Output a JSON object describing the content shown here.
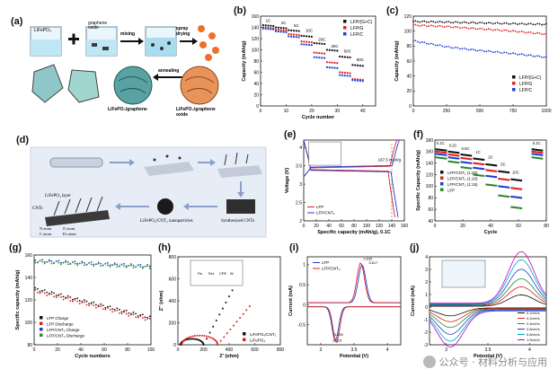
{
  "panels": {
    "a": {
      "label": "(a)",
      "reagent_left": "LiFePO₄",
      "reagent_right": "graphene oxide",
      "step_mixing": "mixing",
      "step_spray": "spray drying",
      "step_anneal": "annealing",
      "product_left": "LiFePO₄/graphene",
      "product_right": "LiFePO₄/graphene oxide"
    },
    "b": {
      "label": "(b)"
    },
    "c": {
      "label": "(c)"
    },
    "d": {
      "label": "(d)",
      "cnts": "CNTs",
      "lfp_layer": "LiFePO₄ layer",
      "nanoparticles": "LiFePO₄/CNT₂ nanoparticles",
      "synthesized": "Synthesized CNTs",
      "legend_n": "N atom",
      "legend_o": "O atom",
      "legend_c": "C atom",
      "legend_fe": "Fe atom"
    },
    "e": {
      "label": "(e)"
    },
    "f": {
      "label": "(f)"
    },
    "g": {
      "label": "(g)"
    },
    "h": {
      "label": "(h)"
    },
    "i": {
      "label": "(i)"
    },
    "j": {
      "label": "(j)"
    }
  },
  "watermark": "公众号 · 材料分析与应用",
  "chart_data": [
    {
      "id": "b",
      "type": "scatter",
      "xlabel": "Cycle number",
      "ylabel": "Capacity (mAh/g)",
      "xlim": [
        0,
        45
      ],
      "ylim": [
        0,
        160
      ],
      "xticks": [
        0,
        10,
        20,
        30,
        40
      ],
      "yticks": [
        0,
        20,
        40,
        60,
        80,
        100,
        120,
        140,
        160
      ],
      "rate_labels": [
        {
          "text": "1C",
          "x": 3,
          "y": 150
        },
        {
          "text": "2C",
          "x": 9,
          "y": 146
        },
        {
          "text": "5C",
          "x": 14,
          "y": 141
        },
        {
          "text": "10C",
          "x": 19,
          "y": 132
        },
        {
          "text": "20C",
          "x": 24,
          "y": 116
        },
        {
          "text": "30C",
          "x": 29,
          "y": 104
        },
        {
          "text": "50C",
          "x": 34,
          "y": 95
        },
        {
          "text": "60C",
          "x": 39,
          "y": 80
        }
      ],
      "series": [
        {
          "name": "LFP/(G+C)",
          "color": "#111111",
          "steps": [
            144,
            140,
            135,
            125,
            112,
            100,
            88,
            73
          ]
        },
        {
          "name": "LFP/G",
          "color": "#e02020",
          "steps": [
            140,
            136,
            128,
            115,
            95,
            78,
            60,
            48
          ]
        },
        {
          "name": "LFP/C",
          "color": "#1e3fd0",
          "steps": [
            138,
            133,
            124,
            110,
            90,
            72,
            58,
            49
          ]
        }
      ]
    },
    {
      "id": "c",
      "type": "line",
      "xlabel": "",
      "ylabel": "Capacity (mAh/g)",
      "xlim": [
        0,
        1000
      ],
      "ylim": [
        0,
        120
      ],
      "xticks": [
        0,
        250,
        500,
        750,
        1000
      ],
      "yticks": [
        0,
        20,
        40,
        60,
        80,
        100,
        120
      ],
      "series": [
        {
          "name": "LFP/(G+C)",
          "color": "#111111",
          "x": [
            0,
            250,
            500,
            750,
            1000
          ],
          "y": [
            113,
            112,
            111,
            110,
            109
          ]
        },
        {
          "name": "LFP/G",
          "color": "#e02020",
          "x": [
            0,
            250,
            500,
            750,
            1000
          ],
          "y": [
            108,
            106,
            103,
            100,
            96
          ]
        },
        {
          "name": "LFP/C",
          "color": "#1e3fd0",
          "x": [
            0,
            250,
            500,
            750,
            1000
          ],
          "y": [
            87,
            79,
            74,
            70,
            65
          ]
        }
      ]
    },
    {
      "id": "e",
      "type": "line",
      "xlabel": "Specific capacity (mAh/g), 0.1C",
      "ylabel": "Voltage (V)",
      "xlim": [
        0,
        160
      ],
      "ylim": [
        2.0,
        4.2
      ],
      "xticks": [
        0,
        20,
        40,
        60,
        80,
        100,
        120,
        140,
        160
      ],
      "yticks": [
        2.0,
        2.5,
        3.0,
        3.5,
        4.0
      ],
      "annotation": "167.5 mAh/g",
      "series": [
        {
          "name": "LFP",
          "color": "#e02020",
          "charge_end": 148,
          "discharge_end": 145
        },
        {
          "name": "LFP/CNT₂",
          "color": "#1e3fd0",
          "charge_end": 152,
          "discharge_end": 150
        }
      ]
    },
    {
      "id": "f",
      "type": "scatter",
      "xlabel": "Cycle",
      "ylabel": "Specific Capacity (mAh/g)",
      "xlim": [
        0,
        80
      ],
      "ylim": [
        40,
        180
      ],
      "xticks": [
        0,
        20,
        40,
        60,
        80
      ],
      "yticks": [
        40,
        60,
        80,
        100,
        120,
        140,
        160,
        180
      ],
      "rate_labels": [
        {
          "text": "0.1C",
          "x": 4,
          "y": 172
        },
        {
          "text": "0.2C",
          "x": 13,
          "y": 168
        },
        {
          "text": "0.5C",
          "x": 22,
          "y": 163
        },
        {
          "text": "1C",
          "x": 31,
          "y": 157
        },
        {
          "text": "2C",
          "x": 40,
          "y": 148
        },
        {
          "text": "5C",
          "x": 49,
          "y": 136
        },
        {
          "text": "10C",
          "x": 58,
          "y": 122
        },
        {
          "text": "0.1C",
          "x": 73,
          "y": 172
        }
      ],
      "series": [
        {
          "name": "LFP/CNT₂ (1:20)",
          "color": "#111111",
          "steps": [
            164,
            160,
            155,
            148,
            138,
            126,
            112,
            164
          ]
        },
        {
          "name": "LFP/CNT₂ (1:10)",
          "color": "#e02020",
          "steps": [
            160,
            155,
            149,
            140,
            128,
            113,
            97,
            160
          ]
        },
        {
          "name": "LFP/CNT₂ (1:15)",
          "color": "#1e3fd0",
          "steps": [
            156,
            150,
            142,
            132,
            118,
            100,
            82,
            156
          ]
        },
        {
          "name": "LFP",
          "color": "#2a8a2a",
          "steps": [
            150,
            143,
            133,
            120,
            103,
            84,
            64,
            150
          ]
        }
      ]
    },
    {
      "id": "g",
      "type": "scatter",
      "xlabel": "Cycle numbers",
      "ylabel": "Specific capacity (mAh/g)",
      "xlim": [
        0,
        100
      ],
      "ylim": [
        80,
        160
      ],
      "xticks": [
        0,
        20,
        40,
        60,
        80,
        100
      ],
      "yticks": [
        80,
        100,
        120,
        140,
        160
      ],
      "series": [
        {
          "name": "LFP Charge",
          "color": "#111111",
          "start": 130,
          "end": 104
        },
        {
          "name": "LFP Discharge",
          "color": "#e02020",
          "start": 128,
          "end": 102
        },
        {
          "name": "LFP/CNT₂ Charge",
          "color": "#1e3fd0",
          "start": 155,
          "end": 150
        },
        {
          "name": "LFP/CNT₂ Discharge",
          "color": "#2a8a2a",
          "start": 154,
          "end": 149
        }
      ]
    },
    {
      "id": "h",
      "type": "scatter",
      "xlabel": "Z′ (ohm)",
      "ylabel": "Z″ (ohm)",
      "xlim": [
        0,
        800
      ],
      "ylim": [
        0,
        800
      ],
      "xticks": [
        0,
        200,
        400,
        600,
        800
      ],
      "yticks": [
        0,
        200,
        400,
        600,
        800
      ],
      "inset_text": [
        "Rs",
        "Rct",
        "CPE",
        "W"
      ],
      "series": [
        {
          "name": "LiFePO₄/CNT₂",
          "color": "#111111"
        },
        {
          "name": "LiFePO₄",
          "color": "#e02020"
        }
      ]
    },
    {
      "id": "i",
      "type": "line",
      "xlabel": "Potential (V)",
      "ylabel": "Current (mA)",
      "xlim": [
        2.8,
        4.2
      ],
      "ylim": [
        -1.0,
        1.2
      ],
      "xticks": [
        3.0,
        3.5,
        4.0
      ],
      "yticks": [
        -0.5,
        0,
        0.5,
        1.0
      ],
      "peak_labels": [
        "3.635",
        "3.617",
        "3.235",
        "3.215"
      ],
      "series": [
        {
          "name": "LFP",
          "color": "#1e3fd0"
        },
        {
          "name": "LFP/CNT₂",
          "color": "#e02020"
        }
      ]
    },
    {
      "id": "j",
      "type": "line",
      "xlabel": "Potential (V)",
      "ylabel": "Current (mA)",
      "xlim": [
        2.8,
        4.2
      ],
      "ylim": [
        -3,
        4
      ],
      "xticks": [
        3.0,
        3.5,
        4.0
      ],
      "yticks": [
        -3,
        -2,
        -1,
        0,
        1,
        2,
        3,
        4
      ],
      "series": [
        {
          "name": "0.1mV/s",
          "color": "#111111",
          "amp": 0.9
        },
        {
          "name": "0.2mV/s",
          "color": "#e02020",
          "amp": 1.5
        },
        {
          "name": "0.4mV/s",
          "color": "#2a8a2a",
          "amp": 2.1
        },
        {
          "name": "0.6mV/s",
          "color": "#1e3fd0",
          "amp": 2.8
        },
        {
          "name": "0.8mV/s",
          "color": "#00a6c8",
          "amp": 3.5
        },
        {
          "name": "1.0mV/s",
          "color": "#c000c0",
          "amp": 4.1
        }
      ]
    }
  ]
}
